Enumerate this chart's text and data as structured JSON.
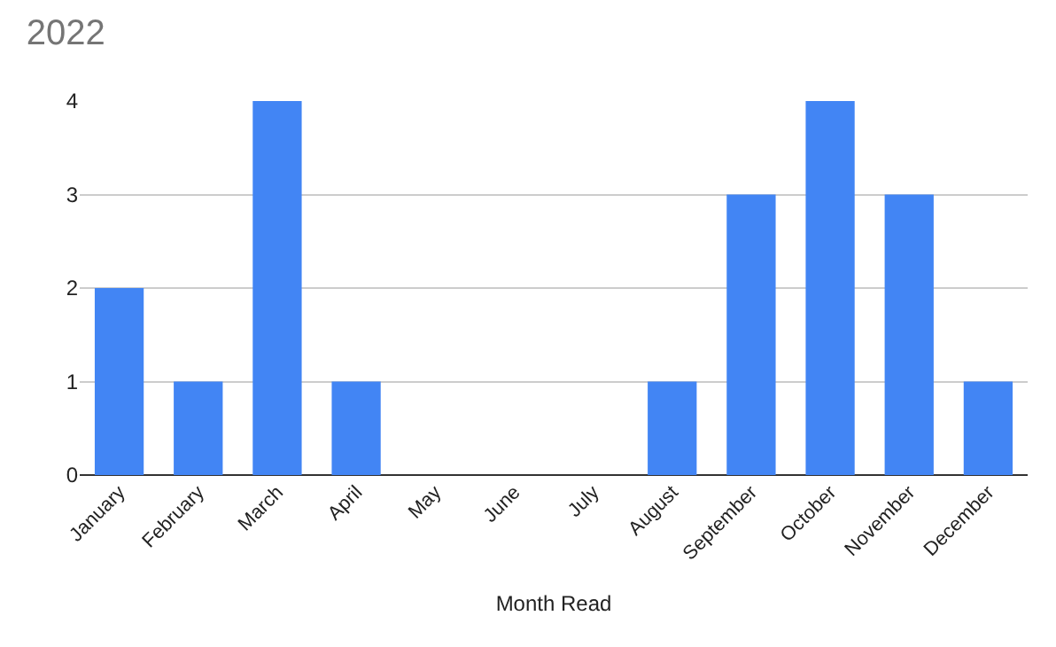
{
  "chart_data": {
    "type": "bar",
    "title": "2022",
    "xlabel": "Month Read",
    "categories": [
      "January",
      "February",
      "March",
      "April",
      "May",
      "June",
      "July",
      "August",
      "September",
      "October",
      "November",
      "December"
    ],
    "values": [
      2,
      1,
      4,
      1,
      0,
      0,
      0,
      1,
      3,
      4,
      3,
      1
    ],
    "color": "#4285f4",
    "ylim": [
      0,
      4
    ],
    "yticks": [
      0,
      1,
      2,
      3,
      4
    ],
    "grid": "y"
  }
}
